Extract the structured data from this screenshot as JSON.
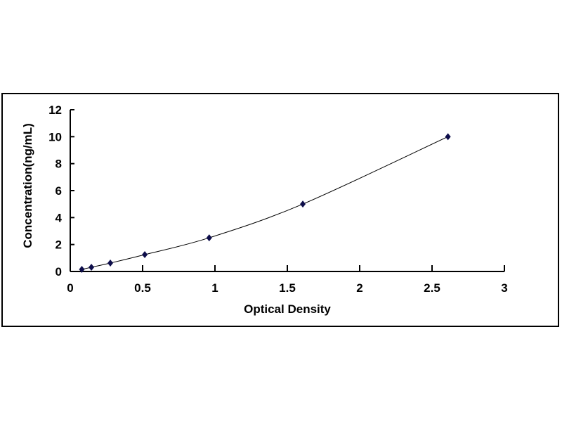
{
  "chart_data": {
    "type": "scatter",
    "title": "",
    "xlabel": "Optical Density",
    "ylabel": "Concentration(ng/mL)",
    "xlim": [
      0,
      3
    ],
    "ylim": [
      0,
      12
    ],
    "xticks": [
      "0",
      "0.5",
      "1",
      "1.5",
      "2",
      "2.5",
      "3"
    ],
    "yticks": [
      "0",
      "2",
      "4",
      "6",
      "8",
      "10",
      "12"
    ],
    "grid": false,
    "legend": "none",
    "trendline": "smooth curve",
    "marker_color": "#0d0d4a",
    "series": [
      {
        "x": [
          0.08,
          0.146,
          0.277,
          0.515,
          0.96,
          1.607,
          2.61
        ],
        "y": [
          0.156,
          0.312,
          0.625,
          1.25,
          2.5,
          5,
          10
        ]
      }
    ]
  }
}
